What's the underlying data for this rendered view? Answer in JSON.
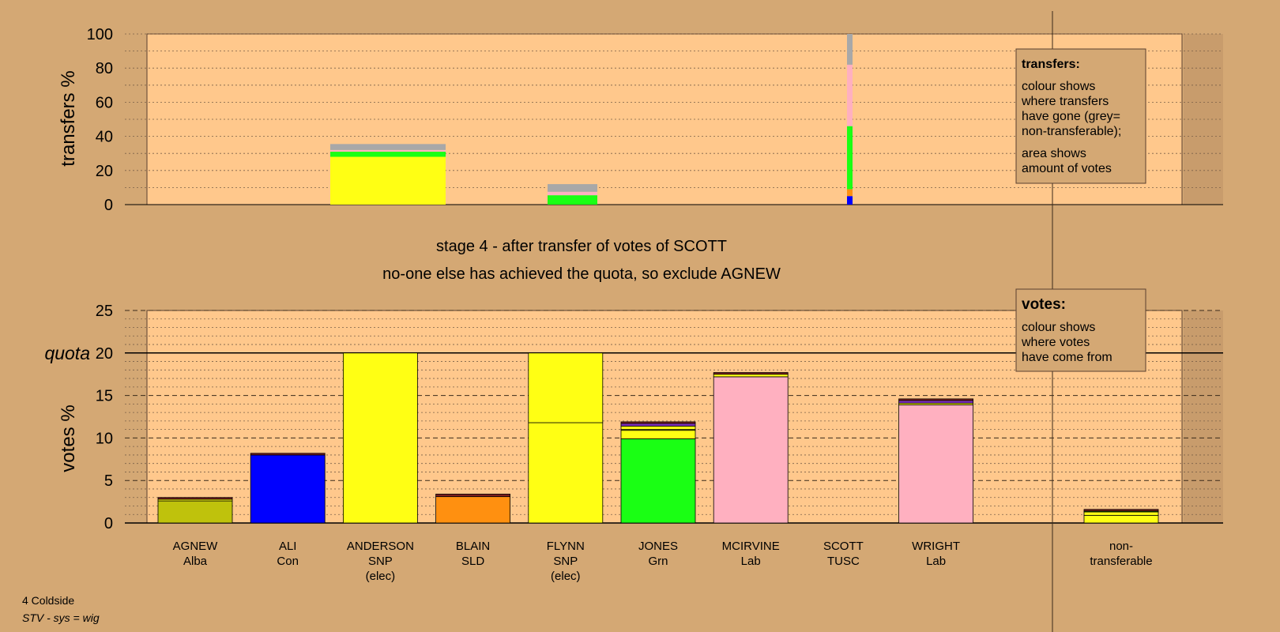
{
  "footer": {
    "ward": "4 Coldside",
    "system": "STV - sys = wig"
  },
  "caption": {
    "line1": "stage 4 - after transfer of votes of SCOTT",
    "line2": "no-one else has achieved the quota, so exclude AGNEW"
  },
  "legend_transfers": {
    "title": "transfers:",
    "lines": [
      "colour shows",
      "where transfers",
      "have gone (grey=",
      "non-transferable);"
    ],
    "lines2": [
      "area shows",
      "amount of votes"
    ]
  },
  "legend_votes": {
    "title": "votes:",
    "lines": [
      "colour shows",
      "where votes",
      "have come from"
    ]
  },
  "colors": {
    "background": "#d4a874",
    "plot_area": "#ffc88c",
    "shade": "#c89c6c",
    "Alba": "#bfc20c",
    "Con": "#0000ff",
    "SNP": "#ffff14",
    "SLD": "#ff9010",
    "Grn": "#1aff14",
    "Lab": "#ffb0c0",
    "TUSC": "#7a1e1e",
    "purple": "#8030c0",
    "nontransferable": "#a8a8a8"
  },
  "chart_data": [
    {
      "type": "bar",
      "name": "transfers",
      "ylabel": "transfers %",
      "ylim": [
        0,
        100
      ],
      "yticks": [
        0,
        20,
        40,
        60,
        80,
        100
      ],
      "grid": true,
      "bars": [
        {
          "candidate": "ANDERSON",
          "segments": [
            {
              "party": "SNP",
              "value": 28
            },
            {
              "party": "Grn",
              "value": 3
            },
            {
              "party": "Lab",
              "value": 1
            },
            {
              "party": "nontransferable",
              "value": 3.5
            }
          ]
        },
        {
          "candidate": "FLYNN",
          "segments": [
            {
              "party": "Grn",
              "value": 5.5
            },
            {
              "party": "Lab",
              "value": 2
            },
            {
              "party": "nontransferable",
              "value": 4.5
            }
          ]
        },
        {
          "candidate": "SCOTT",
          "segments": [
            {
              "party": "Con",
              "value": 5
            },
            {
              "party": "SLD",
              "value": 4
            },
            {
              "party": "Grn",
              "value": 37
            },
            {
              "party": "Lab",
              "value": 36
            },
            {
              "party": "nontransferable",
              "value": 18
            }
          ]
        }
      ]
    },
    {
      "type": "bar",
      "name": "votes",
      "ylabel": "votes %",
      "ylim": [
        0,
        25
      ],
      "yticks": [
        0,
        5,
        10,
        15,
        20,
        25
      ],
      "quota": 20,
      "quota_label": "quota",
      "grid": true,
      "categories": [
        {
          "name": "AGNEW",
          "party": "Alba",
          "note": ""
        },
        {
          "name": "ALI",
          "party": "Con",
          "note": ""
        },
        {
          "name": "ANDERSON",
          "party": "SNP",
          "note": "(elec)"
        },
        {
          "name": "BLAIN",
          "party": "SLD",
          "note": ""
        },
        {
          "name": "FLYNN",
          "party": "SNP",
          "note": "(elec)"
        },
        {
          "name": "JONES",
          "party": "Grn",
          "note": ""
        },
        {
          "name": "MCIRVINE",
          "party": "Lab",
          "note": ""
        },
        {
          "name": "SCOTT",
          "party": "TUSC",
          "note": ""
        },
        {
          "name": "WRIGHT",
          "party": "Lab",
          "note": ""
        },
        {
          "name": "non-",
          "party": "transferable",
          "note": ""
        }
      ],
      "bars": [
        {
          "candidate": "AGNEW",
          "segments": [
            {
              "party": "Alba",
              "value": 2.6
            },
            {
              "party": "SNP",
              "value": 0.2
            },
            {
              "party": "TUSC",
              "value": 0.2
            }
          ]
        },
        {
          "candidate": "ALI",
          "segments": [
            {
              "party": "Con",
              "value": 8.0
            },
            {
              "party": "TUSC",
              "value": 0.2
            }
          ]
        },
        {
          "candidate": "ANDERSON",
          "segments": [
            {
              "party": "SNP",
              "value": 20.0
            }
          ]
        },
        {
          "candidate": "BLAIN",
          "segments": [
            {
              "party": "SLD",
              "value": 3.1
            },
            {
              "party": "TUSC",
              "value": 0.3
            }
          ]
        },
        {
          "candidate": "FLYNN",
          "segments": [
            {
              "party": "SNP",
              "value": 11.8
            },
            {
              "party": "SNP",
              "value": 8.2
            }
          ]
        },
        {
          "candidate": "JONES",
          "segments": [
            {
              "party": "Grn",
              "value": 9.9
            },
            {
              "party": "SNP",
              "value": 1.0
            },
            {
              "party": "Alba",
              "value": 0.1
            },
            {
              "party": "SNP",
              "value": 0.4
            },
            {
              "party": "purple",
              "value": 0.3
            },
            {
              "party": "TUSC",
              "value": 0.2
            }
          ]
        },
        {
          "candidate": "MCIRVINE",
          "segments": [
            {
              "party": "Lab",
              "value": 17.2
            },
            {
              "party": "SNP",
              "value": 0.3
            },
            {
              "party": "TUSC",
              "value": 0.2
            }
          ]
        },
        {
          "candidate": "SCOTT",
          "segments": [
            {
              "party": "TUSC",
              "value": 0.0
            }
          ]
        },
        {
          "candidate": "WRIGHT",
          "segments": [
            {
              "party": "Lab",
              "value": 13.9
            },
            {
              "party": "SNP",
              "value": 0.2
            },
            {
              "party": "purple",
              "value": 0.3
            },
            {
              "party": "TUSC",
              "value": 0.2
            }
          ]
        },
        {
          "candidate": "non-transferable",
          "segments": [
            {
              "party": "SNP",
              "value": 0.9
            },
            {
              "party": "SNP",
              "value": 0.4
            },
            {
              "party": "Grn",
              "value": 0.1
            },
            {
              "party": "TUSC",
              "value": 0.2
            }
          ]
        }
      ]
    }
  ]
}
